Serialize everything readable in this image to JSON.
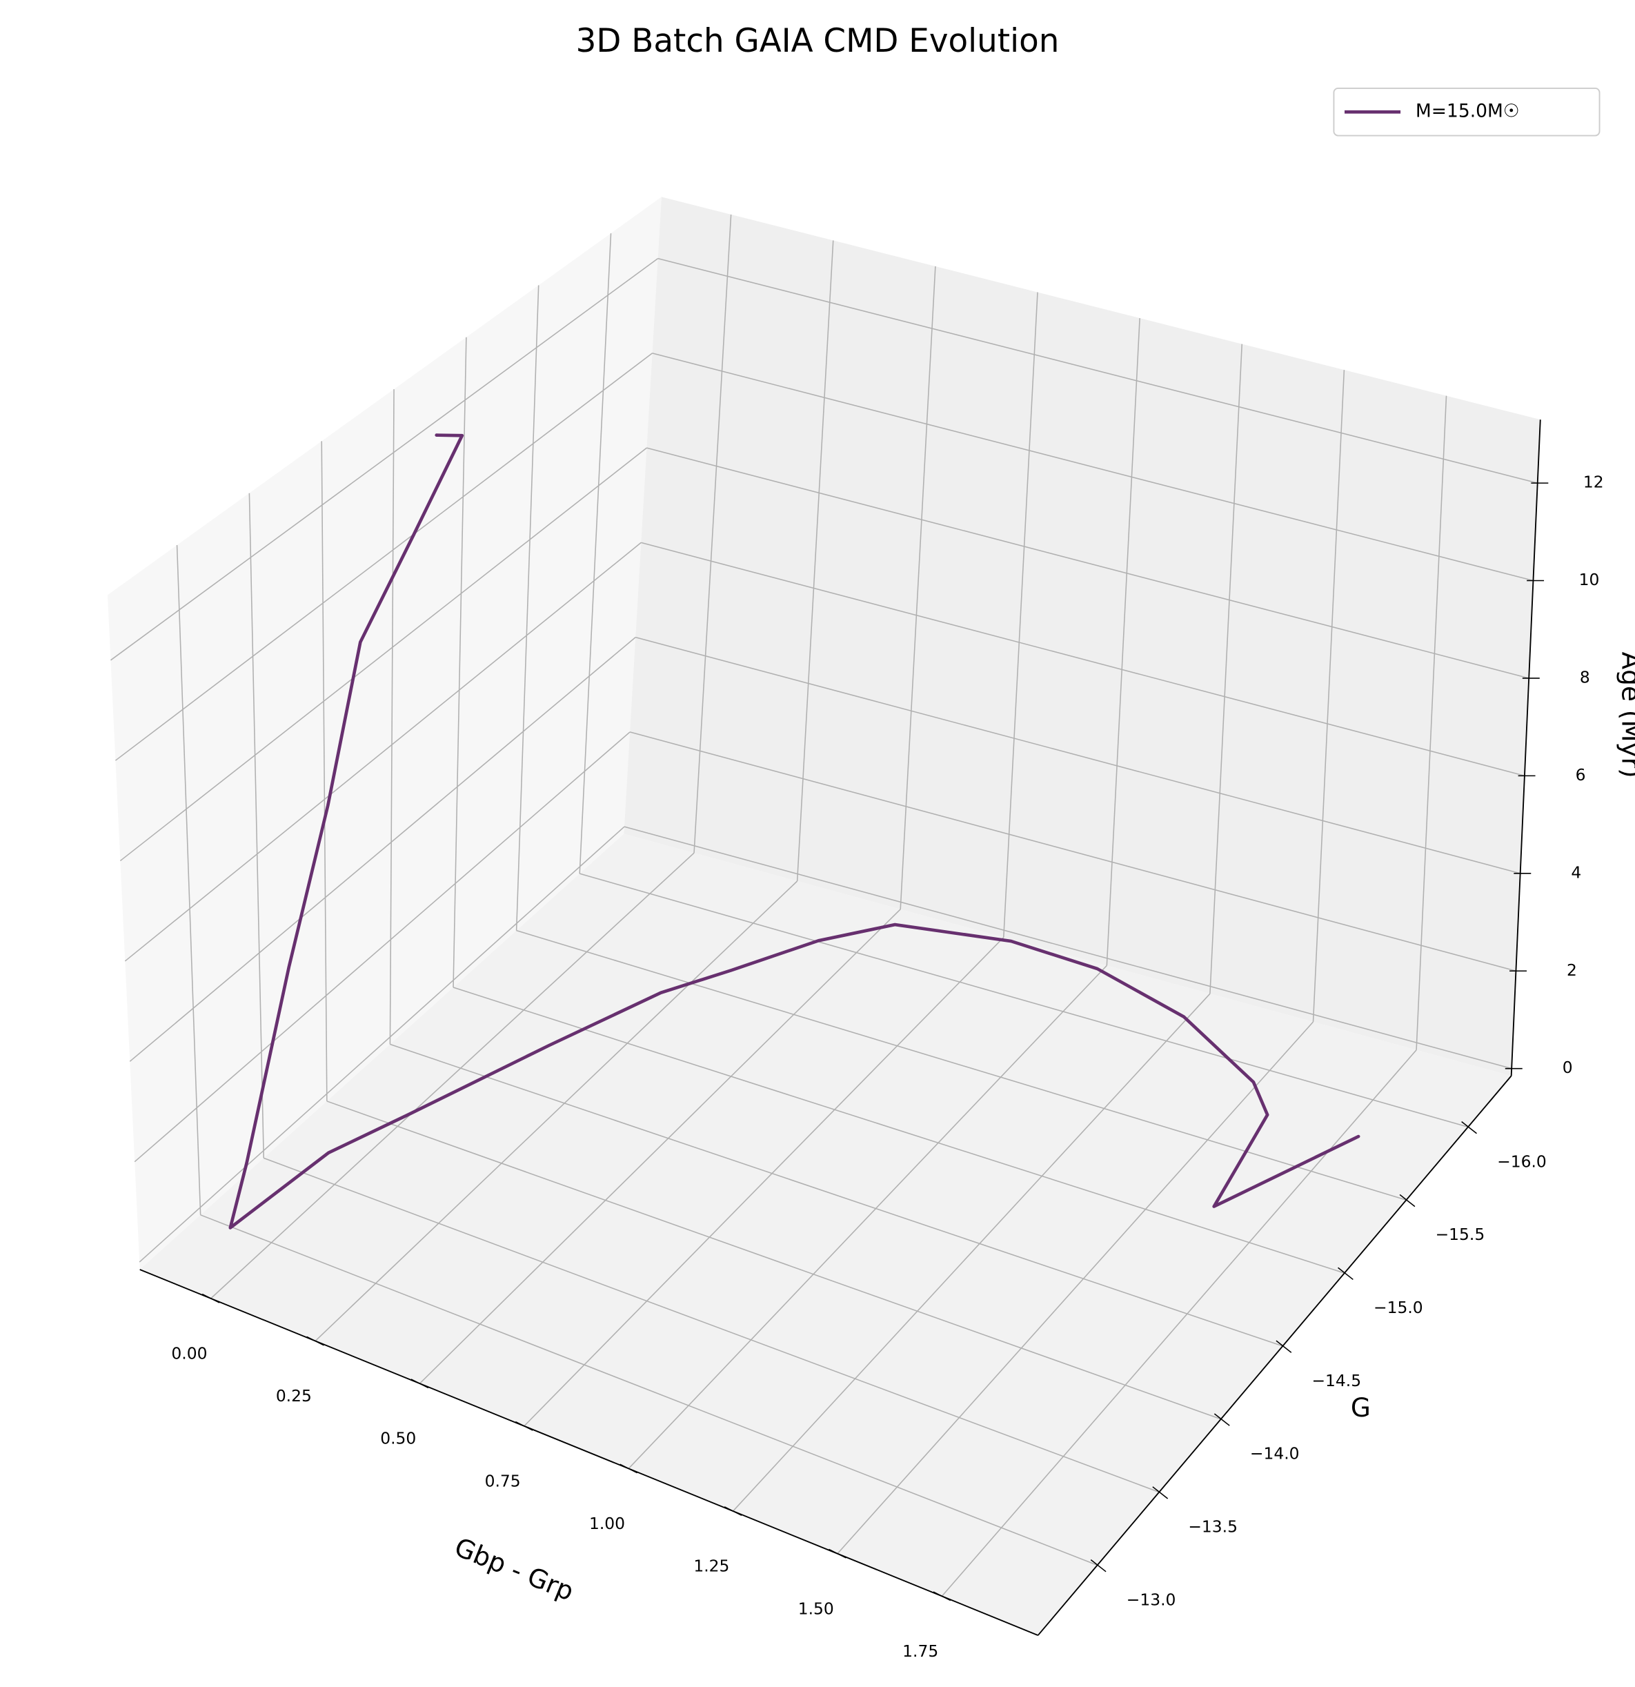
{
  "chart_data": {
    "type": "line3d",
    "title": "3D Batch GAIA CMD Evolution",
    "xlabel": "Gbp - Grp",
    "ylabel": "G",
    "zlabel": "Age (Myr)",
    "xlim": [
      -0.17,
      1.98
    ],
    "ylim": [
      -12.52,
      -16.35
    ],
    "zlim": [
      -0.15,
      13.3
    ],
    "xticks": [
      {
        "value": 0,
        "label": "0.00"
      },
      {
        "value": 0.25,
        "label": "0.25"
      },
      {
        "value": 0.5,
        "label": "0.50"
      },
      {
        "value": 0.75,
        "label": "0.75"
      },
      {
        "value": 1,
        "label": "1.00"
      },
      {
        "value": 1.25,
        "label": "1.25"
      },
      {
        "value": 1.5,
        "label": "1.50"
      },
      {
        "value": 1.75,
        "label": "1.75"
      }
    ],
    "yticks": [
      {
        "value": -13,
        "label": "−13.0"
      },
      {
        "value": -13.5,
        "label": "−13.5"
      },
      {
        "value": -14,
        "label": "−14.0"
      },
      {
        "value": -14.5,
        "label": "−14.5"
      },
      {
        "value": -15,
        "label": "−15.0"
      },
      {
        "value": -15.5,
        "label": "−15.5"
      },
      {
        "value": -16,
        "label": "−16.0"
      }
    ],
    "zticks": [
      0,
      2,
      4,
      6,
      8,
      10,
      12
    ],
    "grid": true,
    "legend": "upper right",
    "series": [
      {
        "name": "M=15.0M☉",
        "color": "#67306f",
        "x": [
          1.795,
          1.638,
          1.587,
          1.505,
          1.258,
          1.006,
          0.791,
          0.54,
          0.428,
          0.324,
          0.239,
          0.139,
          0.024,
          -0.041,
          -0.067,
          -0.06,
          -0.05,
          -0.05,
          -0.05,
          -0.05,
          -0.06,
          -0.06
        ],
        "y": [
          -15.73,
          -15.09,
          -15.69,
          -15.85,
          -16.11,
          -16.25,
          -16.27,
          -16.17,
          -15.93,
          -15.58,
          -15.3,
          -14.74,
          -14.01,
          -13.59,
          -12.9,
          -13.02,
          -13.35,
          -13.66,
          -13.91,
          -14.29,
          -14.66,
          -14.48
        ],
        "z": [
          0,
          0.02,
          0.04,
          0.05,
          0.06,
          0.07,
          0.08,
          0.09,
          0.1,
          0.11,
          0.12,
          0.13,
          0.14,
          0.15,
          0.16,
          1.2,
          4.42,
          6.98,
          9.74,
          11.08,
          12.29,
          12.69
        ]
      }
    ]
  }
}
